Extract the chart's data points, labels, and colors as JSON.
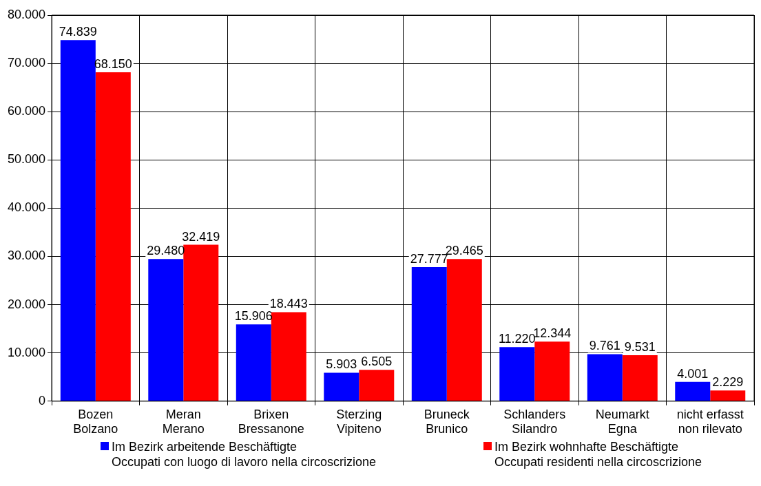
{
  "chart_data": {
    "type": "bar",
    "categories": [
      "Bozen\nBolzano",
      "Meran\nMerano",
      "Brixen\nBressanone",
      "Sterzing\nVipiteno",
      "Bruneck\nBrunico",
      "Schlanders\nSilandro",
      "Neumarkt\nEgna",
      "nicht erfasst\nnon rilevato"
    ],
    "series": [
      {
        "name": "Im Bezirk arbeitende Beschäftigte\nOccupati con luogo di lavoro nella circoscrizione",
        "color": "#0000ff",
        "values": [
          74839,
          29480,
          15906,
          5903,
          27777,
          11220,
          9761,
          4001
        ],
        "value_labels": [
          "74.839",
          "29.480",
          "15.906",
          "5.903",
          "27.777",
          "11.220",
          "9.761",
          "4.001"
        ]
      },
      {
        "name": "Im Bezirk wohnhafte Beschäftigte\nOccupati residenti nella circoscrizione",
        "color": "#ff0000",
        "values": [
          68150,
          32419,
          18443,
          6505,
          29465,
          12344,
          9531,
          2229
        ],
        "value_labels": [
          "68.150",
          "32.419",
          "18.443",
          "6.505",
          "29.465",
          "12.344",
          "9.531",
          "2.229"
        ]
      }
    ],
    "ylim": [
      0,
      80000
    ],
    "yticks": [
      {
        "value": 0,
        "label": "0"
      },
      {
        "value": 10000,
        "label": "10.000"
      },
      {
        "value": 20000,
        "label": "20.000"
      },
      {
        "value": 30000,
        "label": "30.000"
      },
      {
        "value": 40000,
        "label": "40.000"
      },
      {
        "value": 50000,
        "label": "50.000"
      },
      {
        "value": 60000,
        "label": "60.000"
      },
      {
        "value": 70000,
        "label": "70.000"
      },
      {
        "value": 80000,
        "label": "80.000"
      }
    ],
    "grid": true,
    "legend": "bottom"
  }
}
